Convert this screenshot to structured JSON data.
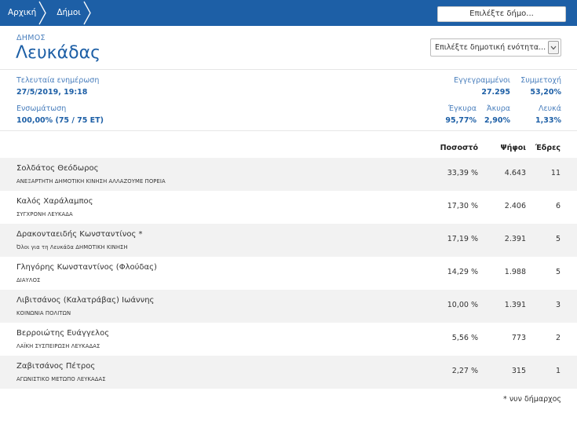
{
  "breadcrumbs": [
    {
      "label": "Αρχική"
    },
    {
      "label": "Δήμοι"
    }
  ],
  "municipality_button": "Επιλέξτε δήμο...",
  "header": {
    "type_label": "ΔΗΜΟΣ",
    "name": "Λευκάδας",
    "unit_select": "Επιλέξτε δημοτική ενότητα..."
  },
  "stats": {
    "last_update_label": "Τελευταία ενημέρωση",
    "last_update_value": "27/5/2019, 19:18",
    "integration_label": "Ενσωμάτωση",
    "integration_value": "100,00% (75 / 75 ΕΤ)",
    "registered_label": "Εγγεγραμμένοι",
    "registered_value": "27.295",
    "turnout_label": "Συμμετοχή",
    "turnout_value": "53,20%",
    "valid_label": "Έγκυρα",
    "valid_value": "95,77%",
    "invalid_label": "Άκυρα",
    "invalid_value": "2,90%",
    "blank_label": "Λευκά",
    "blank_value": "1,33%"
  },
  "table": {
    "headers": {
      "percent": "Ποσοστό",
      "votes": "Ψήφοι",
      "seats": "Έδρες"
    },
    "rows": [
      {
        "candidate": "Σολδάτος Θεόδωρος",
        "party": "ΑΝΕΞΑΡΤΗΤΗ ΔΗΜΟΤΙΚΗ ΚΙΝΗΣΗ ΑΛΛΑΖΟΥΜΕ ΠΟΡΕΙΑ",
        "percent": "33,39 %",
        "votes": "4.643",
        "seats": "11"
      },
      {
        "candidate": "Καλός Χαράλαμπος",
        "party": "ΣΥΓΧΡΟΝΗ ΛΕΥΚΑΔΑ",
        "percent": "17,30 %",
        "votes": "2.406",
        "seats": "6"
      },
      {
        "candidate": "Δρακονταειδής Κωνσταντίνος *",
        "party": "Όλοι για τη Λευκάδα ΔΗΜΟΤΙΚΗ ΚΙΝΗΣΗ",
        "percent": "17,19 %",
        "votes": "2.391",
        "seats": "5"
      },
      {
        "candidate": "Γληγόρης Κωνσταντίνος (Φλούδας)",
        "party": "ΔΙΑΥΛΟΣ",
        "percent": "14,29 %",
        "votes": "1.988",
        "seats": "5"
      },
      {
        "candidate": "Λιβιτσάνος (Καλατράβας) Ιωάννης",
        "party": "ΚΟΙΝΩΝΙΑ ΠΟΛΙΤΩΝ",
        "percent": "10,00 %",
        "votes": "1.391",
        "seats": "3"
      },
      {
        "candidate": "Βερροιώτης Ευάγγελος",
        "party": "ΛΑΪΚΗ ΣΥΣΠΕΙΡΩΣΗ ΛΕΥΚΑΔΑΣ",
        "percent": "5,56 %",
        "votes": "773",
        "seats": "2"
      },
      {
        "candidate": "Ζαβιτσάνος Πέτρος",
        "party": "ΑΓΩΝΙΣΤΙΚΟ ΜΕΤΩΠΟ ΛΕΥΚΑΔΑΣ",
        "percent": "2,27 %",
        "votes": "315",
        "seats": "1"
      }
    ]
  },
  "footnote": "* νυν δήμαρχος"
}
